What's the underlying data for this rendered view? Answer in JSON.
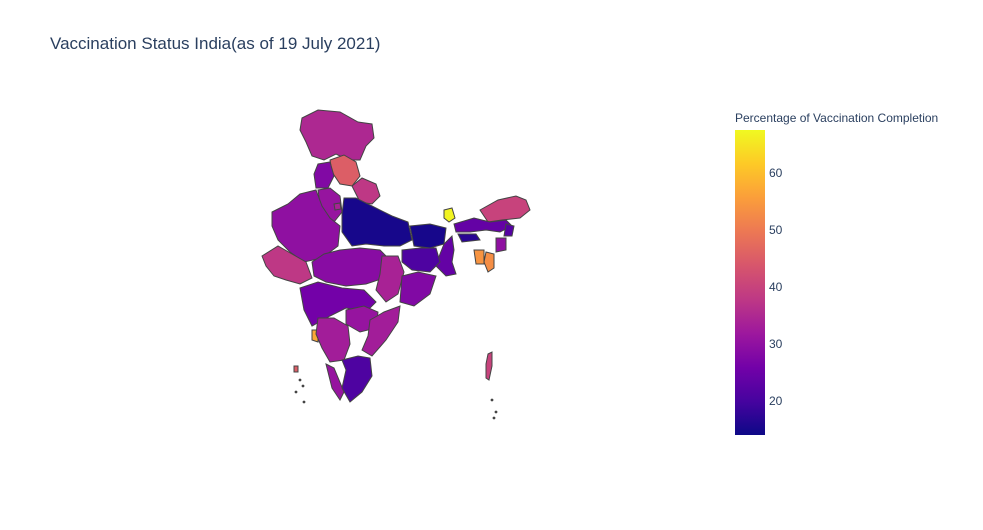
{
  "title": "Vaccination Status India(as of 19 July 2021)",
  "colorbar": {
    "title": "Percentage of Vaccination Completion",
    "range": [
      14,
      67.6
    ],
    "ticks": [
      "20",
      "30",
      "40",
      "50",
      "60"
    ],
    "colorscale": [
      "#0d0887",
      "#46039f",
      "#7201a8",
      "#9c179e",
      "#bd3786",
      "#d8576b",
      "#ed7953",
      "#fb9f3a",
      "#fdca26",
      "#f0f921"
    ]
  },
  "regions": [
    {
      "name": "Jammu and Kashmir",
      "value": 35
    },
    {
      "name": "Himachal Pradesh",
      "value": 45
    },
    {
      "name": "Punjab",
      "value": 28
    },
    {
      "name": "Haryana",
      "value": 31
    },
    {
      "name": "Delhi",
      "value": 34
    },
    {
      "name": "Uttarakhand",
      "value": 38
    },
    {
      "name": "Rajasthan",
      "value": 30
    },
    {
      "name": "Uttar Pradesh",
      "value": 15
    },
    {
      "name": "Bihar",
      "value": 15
    },
    {
      "name": "Sikkim",
      "value": 67
    },
    {
      "name": "Arunachal Pradesh",
      "value": 40
    },
    {
      "name": "Assam",
      "value": 24
    },
    {
      "name": "Meghalaya",
      "value": 17
    },
    {
      "name": "Nagaland",
      "value": 22
    },
    {
      "name": "Manipur",
      "value": 30
    },
    {
      "name": "Mizoram",
      "value": 53
    },
    {
      "name": "Tripura",
      "value": 54
    },
    {
      "name": "West Bengal",
      "value": 24
    },
    {
      "name": "Jharkhand",
      "value": 21
    },
    {
      "name": "Gujarat",
      "value": 38
    },
    {
      "name": "Madhya Pradesh",
      "value": 29
    },
    {
      "name": "Chhattisgarh",
      "value": 34
    },
    {
      "name": "Odisha",
      "value": 28
    },
    {
      "name": "Maharashtra",
      "value": 26
    },
    {
      "name": "Telangana",
      "value": 31
    },
    {
      "name": "Andhra Pradesh",
      "value": 33
    },
    {
      "name": "Goa",
      "value": 57
    },
    {
      "name": "Karnataka",
      "value": 33
    },
    {
      "name": "Kerala",
      "value": 31
    },
    {
      "name": "Tamil Nadu",
      "value": 21
    },
    {
      "name": "Andaman and Nicobar Islands",
      "value": 40
    },
    {
      "name": "Lakshadweep",
      "value": 45
    }
  ]
}
